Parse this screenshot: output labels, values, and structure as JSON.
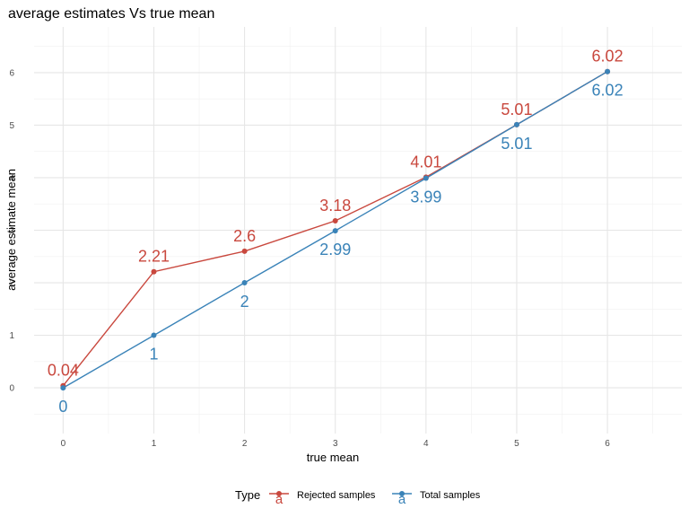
{
  "chart_data": {
    "type": "line",
    "title": "average estimates Vs true mean",
    "xlabel": "true mean",
    "ylabel": "average estimate mean",
    "x": [
      0,
      1,
      2,
      3,
      4,
      5,
      6
    ],
    "x_ticks": [
      "0",
      "1",
      "2",
      "3",
      "4",
      "5",
      "6"
    ],
    "y_ticks": [
      "0",
      "1",
      "2",
      "3",
      "4",
      "5",
      "6"
    ],
    "xlim": [
      -0.32,
      6.82
    ],
    "ylim": [
      -0.87,
      6.87
    ],
    "grid": true,
    "legend_position": "bottom",
    "legend_title": "Type",
    "legend_key_glyph": "a",
    "series": [
      {
        "name": "Rejected samples",
        "color": "#c9483e",
        "values": [
          0.04,
          2.21,
          2.6,
          3.18,
          4.01,
          5.01,
          6.02
        ],
        "labels": [
          "0.04",
          "2.21",
          "2.6",
          "3.18",
          "4.01",
          "5.01",
          "6.02"
        ],
        "label_placement": "above"
      },
      {
        "name": "Total samples",
        "color": "#3a83b8",
        "values": [
          0,
          1,
          2,
          2.99,
          3.99,
          5.01,
          6.02
        ],
        "labels": [
          "0",
          "1",
          "2",
          "2.99",
          "3.99",
          "5.01",
          "6.02"
        ],
        "label_placement": "below"
      }
    ]
  }
}
